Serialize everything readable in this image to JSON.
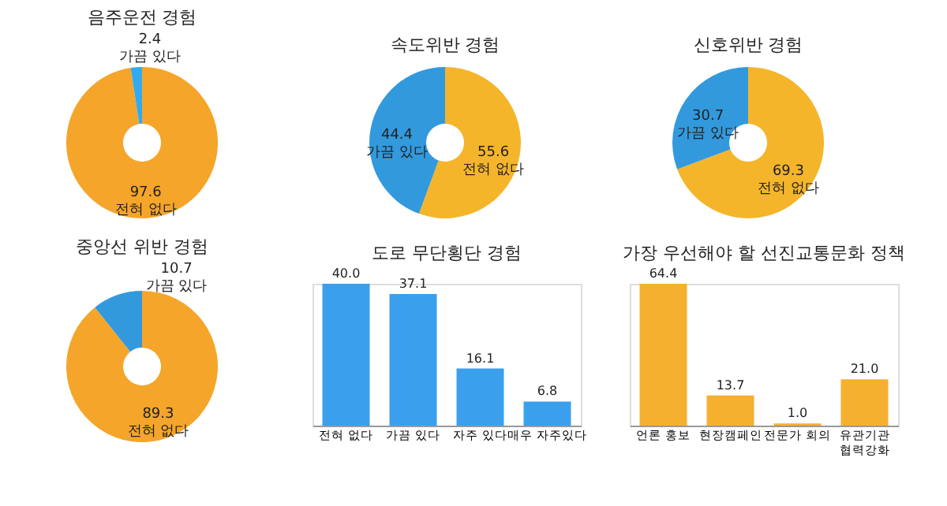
{
  "chart_data": [
    {
      "type": "donut",
      "title": "음주운전 경험",
      "categories": [
        "전혀 없다",
        "가끔 있다"
      ],
      "values": [
        97.6,
        2.4
      ],
      "colors": [
        "#f5a52a",
        "#33aaee"
      ],
      "data_labels": true
    },
    {
      "type": "donut",
      "title": "속도위반 경험",
      "categories": [
        "전혀 없다",
        "가끔 있다"
      ],
      "values": [
        55.6,
        44.4
      ],
      "colors": [
        "#f5b52a",
        "#3399dd"
      ],
      "data_labels": true
    },
    {
      "type": "donut",
      "title": "신호위반 경험",
      "categories": [
        "전혀 없다",
        "가끔 있다"
      ],
      "values": [
        69.3,
        30.7
      ],
      "colors": [
        "#f5b52a",
        "#3399dd"
      ],
      "data_labels": true
    },
    {
      "type": "donut",
      "title": "중앙선 위반 경험",
      "categories": [
        "전혀 없다",
        "가끔 있다"
      ],
      "values": [
        89.3,
        10.7
      ],
      "colors": [
        "#f5a52a",
        "#3399dd"
      ],
      "data_labels": true
    },
    {
      "type": "bar",
      "title": "도로 무단횡단 경험",
      "categories": [
        "전혀 없다",
        "가끔 있다",
        "자주 있다",
        "매우 자주있다"
      ],
      "values": [
        40.0,
        37.1,
        16.1,
        6.8
      ],
      "value_labels": [
        "40.0",
        "37.1",
        "16.1",
        "6.8"
      ],
      "color": "#3aa0ee"
    },
    {
      "type": "bar",
      "title": "가장 우선해야 할 선진교통문화 정책",
      "categories": [
        "언론 홍보",
        "현장캠페인",
        "전문가 회의",
        "유관기관 협력강화"
      ],
      "values": [
        64.4,
        13.7,
        1.0,
        21.0
      ],
      "value_labels": [
        "64.4",
        "13.7",
        "1.0",
        "21.0"
      ],
      "color": "#f5b030"
    }
  ]
}
